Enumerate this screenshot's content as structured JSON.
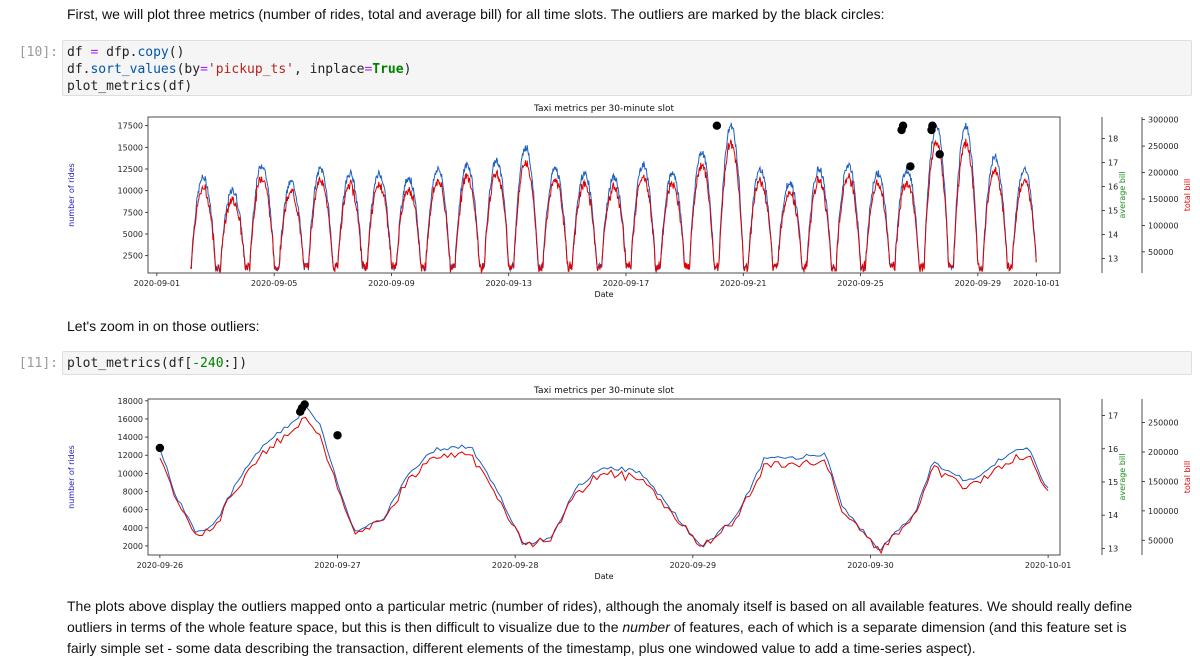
{
  "intro_text": "First, we will plot three metrics (number of rides, total and average bill) for all time slots. The outliers are marked by the black circles:",
  "cell1": {
    "prompt": "[10]:",
    "line1": [
      "df ",
      "=",
      " dfp",
      ".",
      "copy",
      "()"
    ],
    "line2": [
      "df",
      ".",
      "sort_values",
      "(by",
      "=",
      "'pickup_ts'",
      ", inplace",
      "=",
      "True",
      ")"
    ],
    "line3": "plot_metrics(df)"
  },
  "zoom_text": "Let's zoom in on those outliers:",
  "cell2": {
    "prompt": "[11]:",
    "code_pre": "plot_metrics(df[",
    "code_num": "-240",
    "code_post": ":])"
  },
  "outro_text_a": "The plots above display the outliers mapped onto a particular metric (number of rides), although the anomaly itself is based on all available features. We should really define outliers in terms of the whole feature space, but this is then difficult to visualize due to the ",
  "outro_em": "number",
  "outro_text_b": " of features, each of which is a separate dimension (and this feature set is fairly simple set - some data describing the transaction, different elements of the timestamp, plus one windowed value to add a time-series aspect).",
  "colors": {
    "rides": "#1f5fbf",
    "total": "#e00000",
    "avg": "#1a8c1a",
    "outlier": "#000000"
  },
  "chart_data": [
    {
      "type": "line",
      "title": "Taxi metrics per 30-minute slot",
      "xlabel": "Date",
      "ylabel": "number of rides",
      "ylabel_right_inner": "average bill",
      "ylabel_right_outer": "total bill",
      "x_ticks": [
        "2020-09-01",
        "2020-09-05",
        "2020-09-09",
        "2020-09-13",
        "2020-09-17",
        "2020-09-21",
        "2020-09-25",
        "2020-09-29",
        "2020-10-01"
      ],
      "y_ticks": [
        2500,
        5000,
        7500,
        10000,
        12500,
        15000,
        17500
      ],
      "y_ticks_avg": [
        13,
        14,
        15,
        16,
        17,
        18
      ],
      "y_ticks_total": [
        50000,
        100000,
        150000,
        200000,
        250000,
        300000
      ],
      "ylim": [
        500,
        18500
      ],
      "avg_lim": [
        12.4,
        18.9
      ],
      "total_lim": [
        10000,
        305000
      ],
      "x_range_days": [
        0,
        31
      ],
      "daily_peak_rides": [
        11500,
        10000,
        13000,
        11000,
        12500,
        12000,
        12000,
        11500,
        12500,
        13000,
        13500,
        15000,
        12500,
        12000,
        11500,
        13000,
        12000,
        14500,
        17500,
        12500,
        11000,
        12500,
        13000,
        12000,
        12500,
        17500,
        17500,
        14000,
        12500,
        13000
      ],
      "outliers": [
        {
          "date": "2020-09-20",
          "rides": 17500
        },
        {
          "date": "2020-09-26",
          "rides": 17500
        },
        {
          "date": "2020-09-26",
          "rides": 17000
        },
        {
          "date": "2020-09-26",
          "rides": 12800
        },
        {
          "date": "2020-09-27",
          "rides": 17500
        },
        {
          "date": "2020-09-27",
          "rides": 17000
        },
        {
          "date": "2020-09-27",
          "rides": 14200
        }
      ]
    },
    {
      "type": "line",
      "title": "Taxi metrics per 30-minute slot",
      "xlabel": "Date",
      "ylabel": "number of rides",
      "ylabel_right_inner": "average bill",
      "ylabel_right_outer": "total bill",
      "x_ticks": [
        "2020-09-26",
        "2020-09-27",
        "2020-09-28",
        "2020-09-29",
        "2020-09-30",
        "2020-10-01"
      ],
      "y_ticks": [
        2000,
        4000,
        6000,
        8000,
        10000,
        12000,
        14000,
        16000,
        18000
      ],
      "y_ticks_avg": [
        13,
        14,
        15,
        16,
        17
      ],
      "y_ticks_total": [
        50000,
        100000,
        150000,
        200000,
        250000
      ],
      "ylim": [
        1000,
        18200
      ],
      "avg_lim": [
        12.8,
        17.5
      ],
      "total_lim": [
        25000,
        290000
      ],
      "x_range_days": [
        0,
        5
      ],
      "rides_series": [
        {
          "d": 0.0,
          "v": 12800
        },
        {
          "d": 0.08,
          "v": 8000
        },
        {
          "d": 0.2,
          "v": 3500
        },
        {
          "d": 0.3,
          "v": 4200
        },
        {
          "d": 0.45,
          "v": 9500
        },
        {
          "d": 0.6,
          "v": 13500
        },
        {
          "d": 0.78,
          "v": 16000
        },
        {
          "d": 0.82,
          "v": 17600
        },
        {
          "d": 0.9,
          "v": 15500
        },
        {
          "d": 1.0,
          "v": 9000
        },
        {
          "d": 1.1,
          "v": 3500
        },
        {
          "d": 1.25,
          "v": 4800
        },
        {
          "d": 1.4,
          "v": 10000
        },
        {
          "d": 1.55,
          "v": 12700
        },
        {
          "d": 1.75,
          "v": 13000
        },
        {
          "d": 1.9,
          "v": 8000
        },
        {
          "d": 2.05,
          "v": 2000
        },
        {
          "d": 2.2,
          "v": 3000
        },
        {
          "d": 2.35,
          "v": 8500
        },
        {
          "d": 2.5,
          "v": 10800
        },
        {
          "d": 2.7,
          "v": 10200
        },
        {
          "d": 2.88,
          "v": 6000
        },
        {
          "d": 3.05,
          "v": 1700
        },
        {
          "d": 3.25,
          "v": 5500
        },
        {
          "d": 3.4,
          "v": 11500
        },
        {
          "d": 3.6,
          "v": 11800
        },
        {
          "d": 3.75,
          "v": 12200
        },
        {
          "d": 3.85,
          "v": 6000
        },
        {
          "d": 4.05,
          "v": 1600
        },
        {
          "d": 4.25,
          "v": 5500
        },
        {
          "d": 4.35,
          "v": 11300
        },
        {
          "d": 4.55,
          "v": 9000
        },
        {
          "d": 4.75,
          "v": 11800
        },
        {
          "d": 4.88,
          "v": 13000
        },
        {
          "d": 5.0,
          "v": 8200
        }
      ],
      "outliers": [
        {
          "date": "2020-09-26",
          "rides": 12800
        },
        {
          "date": "2020-09-26",
          "rides": 17600
        },
        {
          "date": "2020-09-26",
          "rides": 17200
        },
        {
          "date": "2020-09-26",
          "rides": 16800
        },
        {
          "date": "2020-09-27",
          "rides": 14200
        }
      ]
    }
  ]
}
